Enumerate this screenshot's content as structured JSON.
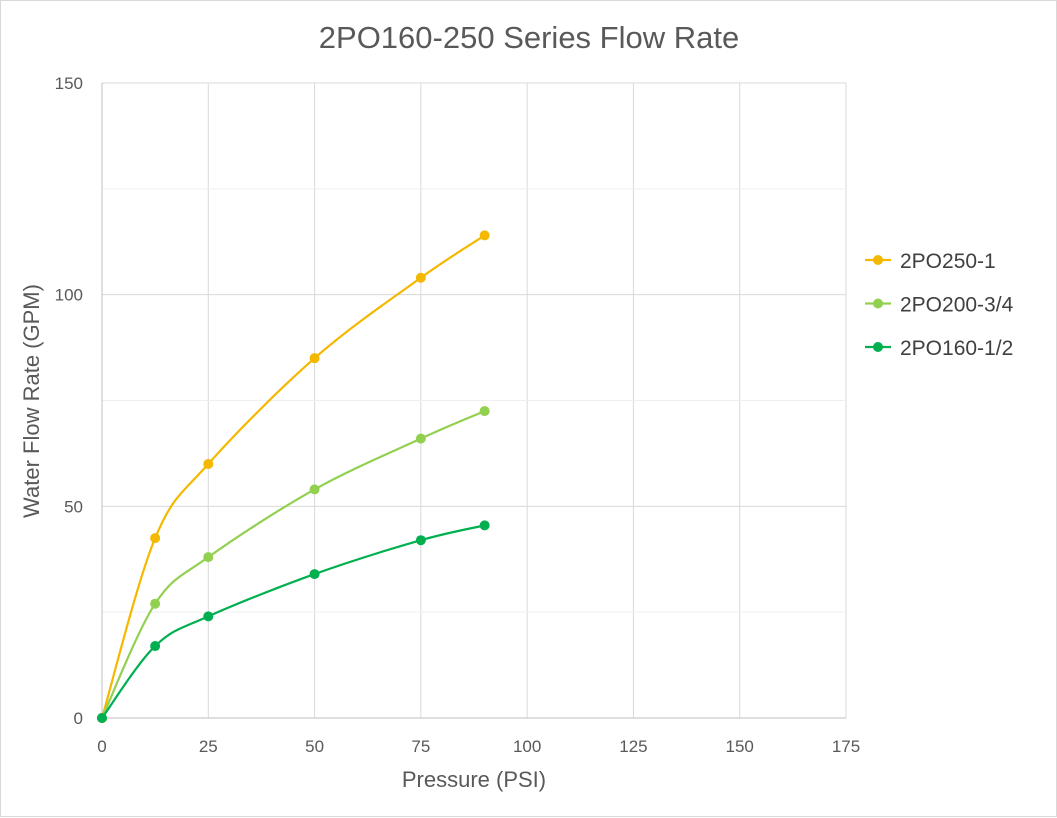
{
  "chart_data": {
    "type": "scatter",
    "title": "2PO160-250 Series Flow Rate",
    "xlabel": "Pressure (PSI)",
    "ylabel": "Water Flow Rate (GPM)",
    "xlim": [
      0,
      175
    ],
    "ylim": [
      0,
      150
    ],
    "x_ticks": [
      0,
      25,
      50,
      75,
      100,
      125,
      150,
      175
    ],
    "y_ticks": [
      0,
      50,
      100,
      150
    ],
    "x_tick_labels": [
      "0",
      "25",
      "50",
      "75",
      "100",
      "125",
      "150",
      "175"
    ],
    "y_tick_labels": [
      "0",
      "50",
      "100",
      "150"
    ],
    "grid": true,
    "smooth_lines": true,
    "legend_position": "right",
    "series": [
      {
        "name": "2PO250-1",
        "color": "#F5B800",
        "x": [
          0,
          12.5,
          25,
          50,
          75,
          90
        ],
        "y": [
          0,
          42.5,
          60,
          85,
          104,
          114
        ]
      },
      {
        "name": "2PO200-3/4",
        "color": "#92D050",
        "x": [
          0,
          12.5,
          25,
          50,
          75,
          90
        ],
        "y": [
          0,
          27,
          38,
          54,
          66,
          72.5
        ]
      },
      {
        "name": "2PO160-1/2",
        "color": "#00B050",
        "x": [
          0,
          12.5,
          25,
          50,
          75,
          90
        ],
        "y": [
          0,
          17,
          24,
          34,
          42,
          45.5
        ]
      }
    ]
  }
}
